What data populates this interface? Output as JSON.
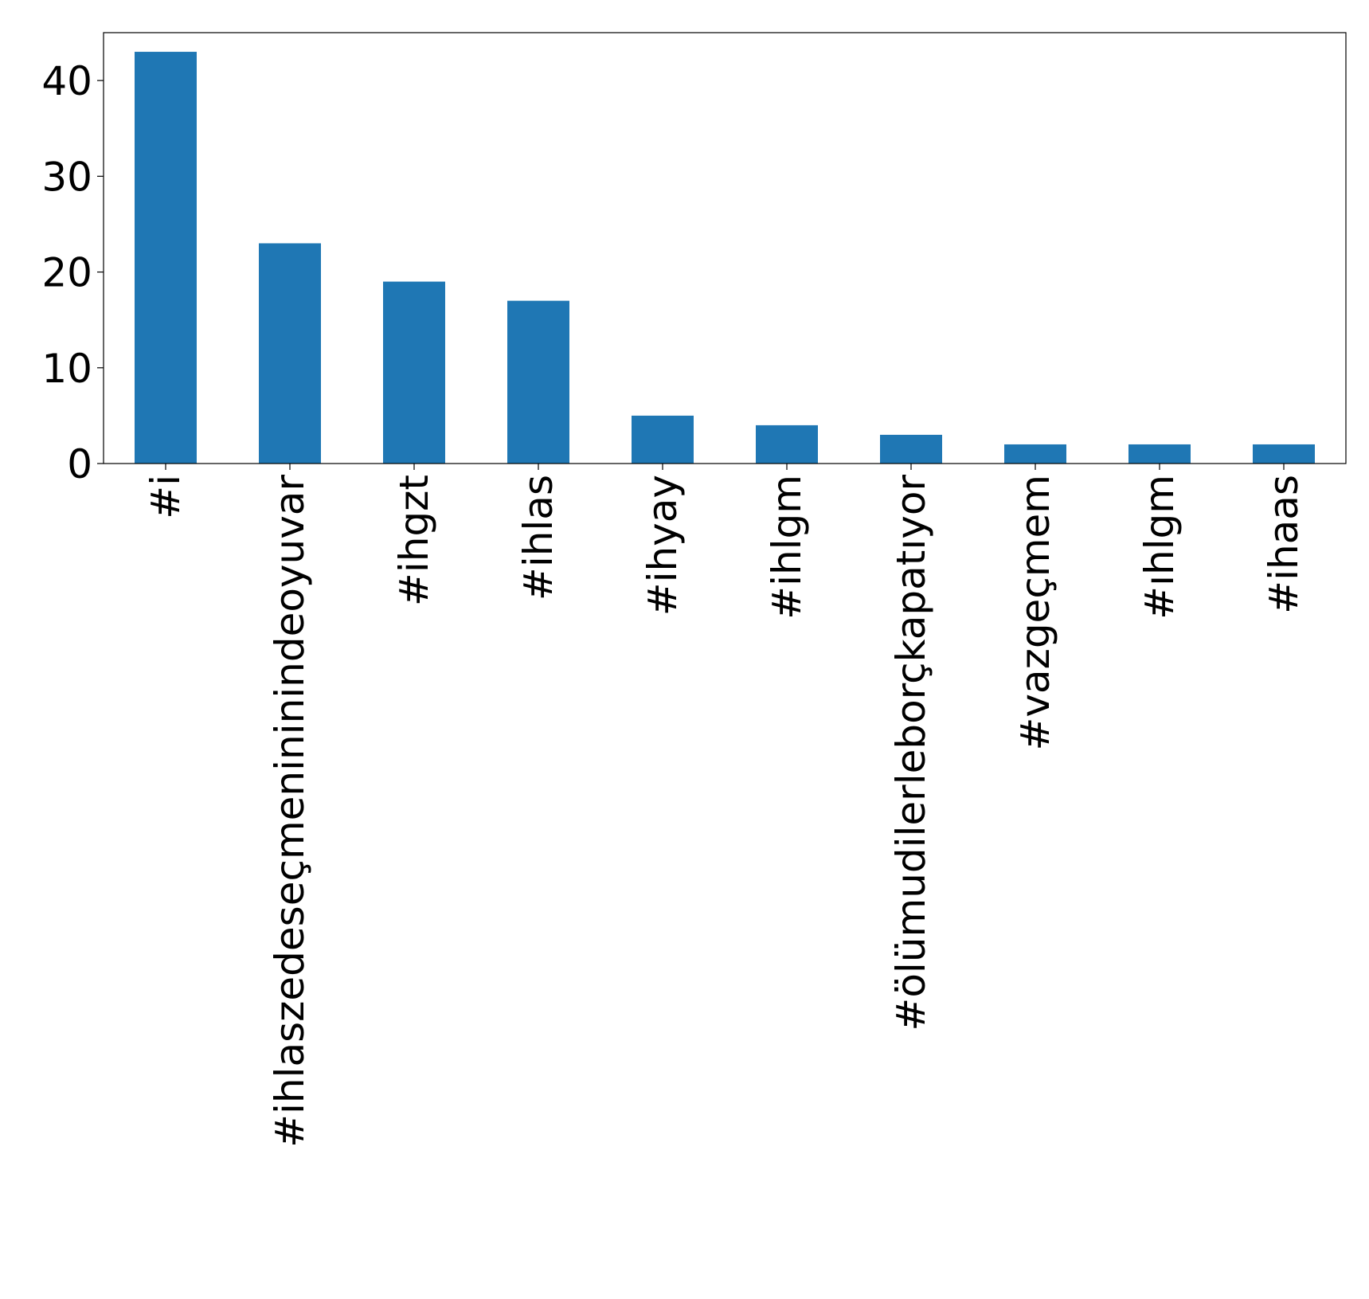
{
  "chart_data": {
    "type": "bar",
    "title": "",
    "xlabel": "",
    "ylabel": "",
    "categories": [
      "#i",
      "#ihlaszedeseçmenininindeoyuvar",
      "#ihgzt",
      "#ihlas",
      "#ihyay",
      "#ihlgm",
      "#ölümudilerleborçkapatıyor",
      "#vazgeçmem",
      "#ıhlgm",
      "#ihaas"
    ],
    "values": [
      43,
      23,
      19,
      17,
      5,
      4,
      3,
      2,
      2,
      2
    ],
    "ylim": [
      0,
      45
    ],
    "yticks": [
      0,
      10,
      20,
      30,
      40
    ],
    "bar_color": "#1f77b4",
    "grid": false,
    "legend": "none"
  }
}
